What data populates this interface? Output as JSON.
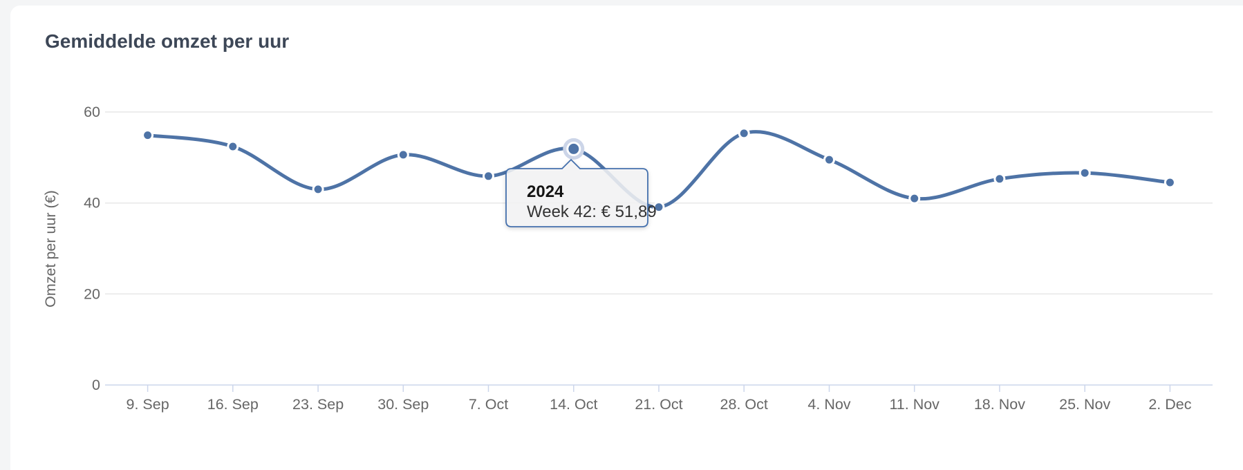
{
  "page": {
    "background_color": "#f4f5f6",
    "card_background_color": "#ffffff"
  },
  "chart": {
    "title": "Gemiddelde omzet per uur",
    "tooltip": {
      "year": "2024",
      "label": "Week 42: € 51,89"
    }
  },
  "chart_data": {
    "type": "line",
    "title": "Gemiddelde omzet per uur",
    "xlabel": "",
    "ylabel": "Omzet per uur (€)",
    "categories": [
      "9. Sep",
      "16. Sep",
      "23. Sep",
      "30. Sep",
      "7. Oct",
      "14. Oct",
      "21. Oct",
      "28. Oct",
      "4. Nov",
      "11. Nov",
      "18. Nov",
      "25. Nov",
      "2. Dec"
    ],
    "series": [
      {
        "name": "2024",
        "values": [
          54.9,
          52.4,
          43.0,
          50.6,
          45.9,
          51.89,
          39.1,
          55.3,
          49.5,
          41.0,
          45.3,
          46.6,
          44.5
        ]
      }
    ],
    "yticks": [
      0,
      20,
      40,
      60
    ],
    "ylim": [
      0,
      60
    ],
    "grid": "horizontal-only",
    "legend": "off",
    "curve": "smooth-spline",
    "markers": "round-dots",
    "highlighted_index": 5,
    "highlighted_tooltip": {
      "year": "2024",
      "text": "Week 42: € 51,89",
      "week": 42,
      "value_eur": "51,89"
    },
    "colors": {
      "line": "#4e73a6",
      "marker": "#4e73a6",
      "halo": "#ccd5e8",
      "grid_line": "#e7e7e7",
      "axis_line": "#ccd6eb",
      "axis_label": "#666666",
      "title_text": "#3d4757",
      "tooltip_border": "#4470ad",
      "tooltip_background": "#f7f7f8"
    }
  }
}
